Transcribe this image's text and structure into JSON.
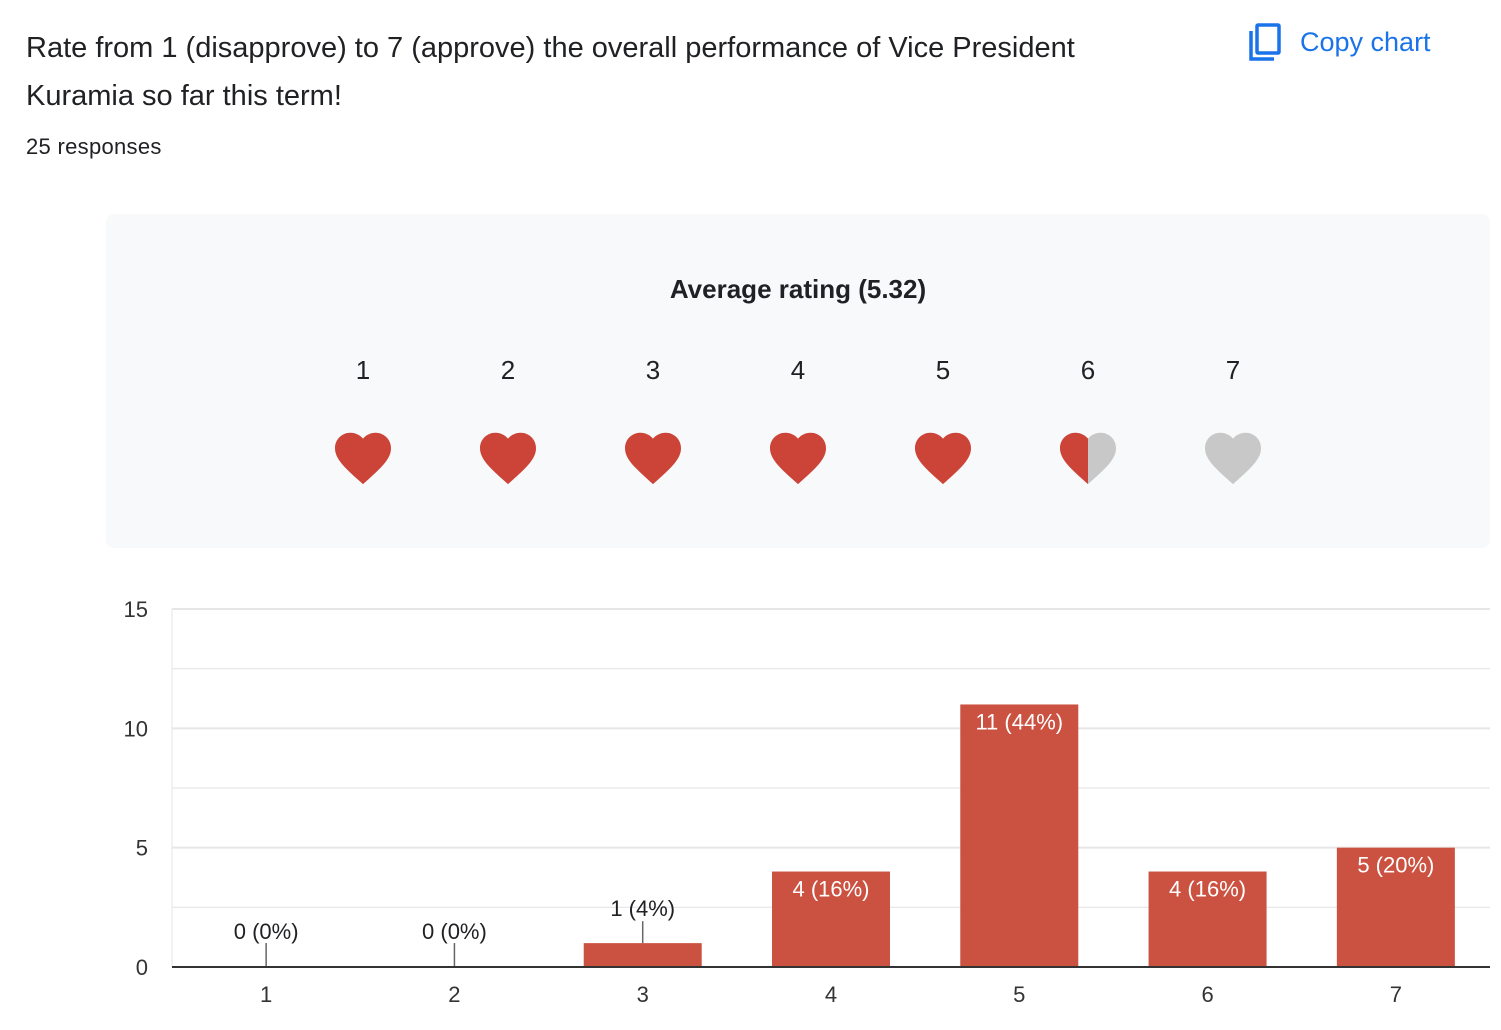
{
  "question": {
    "title": "Rate from 1 (disapprove) to 7 (approve) the overall performance of Vice President Kuramia so far this term!",
    "responses": "25 responses"
  },
  "toolbar": {
    "copy_label": "Copy chart",
    "copy_icon": "copy-icon"
  },
  "rating": {
    "title": "Average rating (5.32)",
    "average": 5.32,
    "scale": [
      "1",
      "2",
      "3",
      "4",
      "5",
      "6",
      "7"
    ],
    "icon": "heart-icon"
  },
  "colors": {
    "accent": "#1a73e8",
    "bar": "#cb5141",
    "heart_filled": "#cc4337",
    "heart_empty": "#c8c8c8",
    "grid": "#e6e6e6",
    "axis": "#333333"
  },
  "chart_data": {
    "type": "bar",
    "categories": [
      "1",
      "2",
      "3",
      "4",
      "5",
      "6",
      "7"
    ],
    "values": [
      0,
      0,
      1,
      4,
      11,
      4,
      5
    ],
    "labels": [
      "0 (0%)",
      "0 (0%)",
      "1 (4%)",
      "4 (16%)",
      "11 (44%)",
      "4 (16%)",
      "5 (20%)"
    ],
    "yticks": [
      "0",
      "5",
      "10",
      "15"
    ],
    "ylim": [
      0,
      15
    ],
    "title": "",
    "xlabel": "",
    "ylabel": ""
  }
}
